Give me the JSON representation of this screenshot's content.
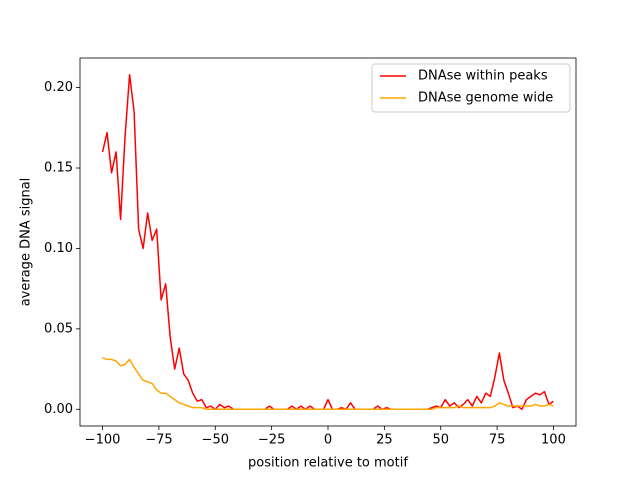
{
  "chart_data": {
    "type": "line",
    "xlabel": "position relative to motif",
    "ylabel": "average DNA signal",
    "x": [
      -100,
      -98,
      -96,
      -94,
      -92,
      -90,
      -88,
      -86,
      -84,
      -82,
      -80,
      -78,
      -76,
      -74,
      -72,
      -70,
      -68,
      -66,
      -64,
      -62,
      -60,
      -58,
      -56,
      -54,
      -52,
      -50,
      -48,
      -46,
      -44,
      -42,
      -40,
      -38,
      -36,
      -34,
      -32,
      -30,
      -28,
      -26,
      -24,
      -22,
      -20,
      -18,
      -16,
      -14,
      -12,
      -10,
      -8,
      -6,
      -4,
      -2,
      0,
      2,
      4,
      6,
      8,
      10,
      12,
      14,
      16,
      18,
      20,
      22,
      24,
      26,
      28,
      30,
      32,
      34,
      36,
      38,
      40,
      42,
      44,
      46,
      48,
      50,
      52,
      54,
      56,
      58,
      60,
      62,
      64,
      66,
      68,
      70,
      72,
      74,
      76,
      78,
      80,
      82,
      84,
      86,
      88,
      90,
      92,
      94,
      96,
      98,
      100
    ],
    "series": [
      {
        "name": "DNAse within peaks",
        "color": "#ff0000",
        "values": [
          0.16,
          0.172,
          0.147,
          0.16,
          0.118,
          0.17,
          0.208,
          0.185,
          0.112,
          0.1,
          0.122,
          0.105,
          0.112,
          0.068,
          0.078,
          0.045,
          0.025,
          0.038,
          0.022,
          0.018,
          0.01,
          0.005,
          0.006,
          0.001,
          0.002,
          0,
          0.003,
          0.001,
          0.002,
          0,
          0,
          0,
          0,
          0,
          0,
          0,
          0,
          0.002,
          0,
          0,
          0,
          0,
          0.002,
          0,
          0.002,
          0,
          0.002,
          0,
          0,
          0,
          0.006,
          0,
          0,
          0.001,
          0,
          0.004,
          0,
          0,
          0,
          0,
          0,
          0.002,
          0,
          0.001,
          0,
          0,
          0,
          0,
          0,
          0,
          0,
          0,
          0,
          0.001,
          0.002,
          0.001,
          0.006,
          0.002,
          0.004,
          0.001,
          0.003,
          0.006,
          0.002,
          0.008,
          0.004,
          0.01,
          0.008,
          0.02,
          0.035,
          0.018,
          0.01,
          0.001,
          0.002,
          0,
          0.006,
          0.008,
          0.01,
          0.009,
          0.011,
          0.003,
          0.005
        ]
      },
      {
        "name": "DNAse genome wide",
        "color": "#ffa500",
        "values": [
          0.032,
          0.031,
          0.031,
          0.03,
          0.027,
          0.028,
          0.031,
          0.026,
          0.022,
          0.018,
          0.017,
          0.016,
          0.012,
          0.01,
          0.01,
          0.008,
          0.006,
          0.004,
          0.003,
          0.002,
          0.001,
          0.001,
          0.001,
          0,
          0,
          0,
          0,
          0,
          0,
          0,
          0,
          0,
          0,
          0,
          0,
          0,
          0,
          0,
          0,
          0,
          0,
          0,
          0,
          0,
          0,
          0,
          0,
          0,
          0,
          0,
          0,
          0,
          0,
          0,
          0,
          0,
          0,
          0,
          0,
          0,
          0,
          0,
          0,
          0,
          0,
          0,
          0,
          0,
          0,
          0,
          0,
          0,
          0,
          0,
          0.001,
          0.001,
          0.001,
          0.001,
          0.001,
          0.002,
          0.001,
          0.001,
          0.001,
          0.001,
          0.001,
          0.001,
          0.001,
          0.002,
          0.004,
          0.003,
          0.002,
          0.002,
          0.002,
          0.002,
          0.002,
          0.002,
          0.003,
          0.002,
          0.002,
          0.003,
          0.002
        ]
      }
    ],
    "xlim": [
      -110,
      110
    ],
    "ylim": [
      -0.0104,
      0.2184
    ],
    "xticks": [
      {
        "value": -100,
        "label": "−100"
      },
      {
        "value": -75,
        "label": "−75"
      },
      {
        "value": -50,
        "label": "−50"
      },
      {
        "value": -25,
        "label": "−25"
      },
      0,
      25,
      50,
      75,
      100
    ],
    "yticks": [
      {
        "value": 0,
        "label": "0.00"
      },
      {
        "value": 0.05,
        "label": "0.05"
      },
      {
        "value": 0.1,
        "label": "0.10"
      },
      {
        "value": 0.15,
        "label": "0.15"
      },
      {
        "value": 0.2,
        "label": "0.20"
      }
    ],
    "legend": "upper right",
    "grid": false
  }
}
